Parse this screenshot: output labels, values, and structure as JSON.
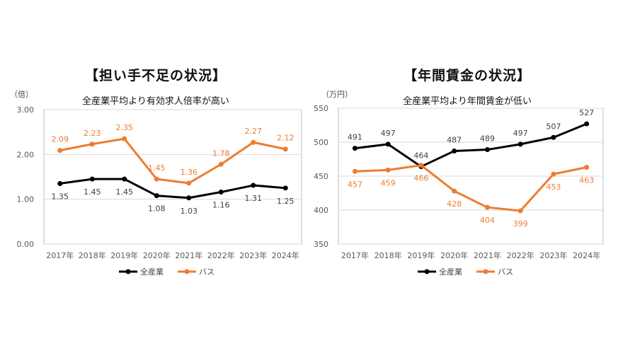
{
  "chart_data": [
    {
      "type": "line",
      "title": "【担い手不足の状況】",
      "subtitle": "全産業平均より有効求人倍率が高い",
      "unit": "（倍）",
      "categories": [
        "2017年",
        "2018年",
        "2019年",
        "2020年",
        "2021年",
        "2022年",
        "2023年",
        "2024年"
      ],
      "ylim": [
        0,
        3
      ],
      "yticks": [
        0,
        1,
        2,
        3
      ],
      "ytick_labels": [
        "0.00",
        "1.00",
        "2.00",
        "3.00"
      ],
      "grid": true,
      "legend_position": "bottom",
      "series": [
        {
          "name": "全産業",
          "color": "#000000",
          "values": [
            1.35,
            1.45,
            1.45,
            1.08,
            1.03,
            1.16,
            1.31,
            1.25
          ],
          "labels": [
            "1.35",
            "1.45",
            "1.45",
            "1.08",
            "1.03",
            "1.16",
            "1.31",
            "1.25"
          ],
          "label_pos": "below"
        },
        {
          "name": "バス",
          "color": "#ED7D31",
          "values": [
            2.09,
            2.23,
            2.35,
            1.45,
            1.36,
            1.78,
            2.27,
            2.12
          ],
          "labels": [
            "2.09",
            "2.23",
            "2.35",
            "1.45",
            "1.36",
            "1.78",
            "2.27",
            "2.12"
          ],
          "label_pos": "above"
        }
      ]
    },
    {
      "type": "line",
      "title": "【年間賃金の状況】",
      "subtitle": "全産業平均より年間賃金が低い",
      "unit": "（万円）",
      "categories": [
        "2017年",
        "2018年",
        "2019年",
        "2020年",
        "2021年",
        "2022年",
        "2023年",
        "2024年"
      ],
      "ylim": [
        350,
        550
      ],
      "yticks": [
        350,
        400,
        450,
        500,
        550
      ],
      "ytick_labels": [
        "350",
        "400",
        "450",
        "500",
        "550"
      ],
      "grid": true,
      "legend_position": "bottom",
      "series": [
        {
          "name": "全産業",
          "color": "#000000",
          "values": [
            491,
            497,
            464,
            487,
            489,
            497,
            507,
            527
          ],
          "labels": [
            "491",
            "497",
            "464",
            "487",
            "489",
            "497",
            "507",
            "527"
          ],
          "label_pos": "above"
        },
        {
          "name": "バス",
          "color": "#ED7D31",
          "values": [
            457,
            459,
            466,
            428,
            404,
            399,
            453,
            463
          ],
          "labels": [
            "457",
            "459",
            "466",
            "428",
            "404",
            "399",
            "453",
            "463"
          ],
          "label_pos": "below"
        }
      ]
    }
  ]
}
